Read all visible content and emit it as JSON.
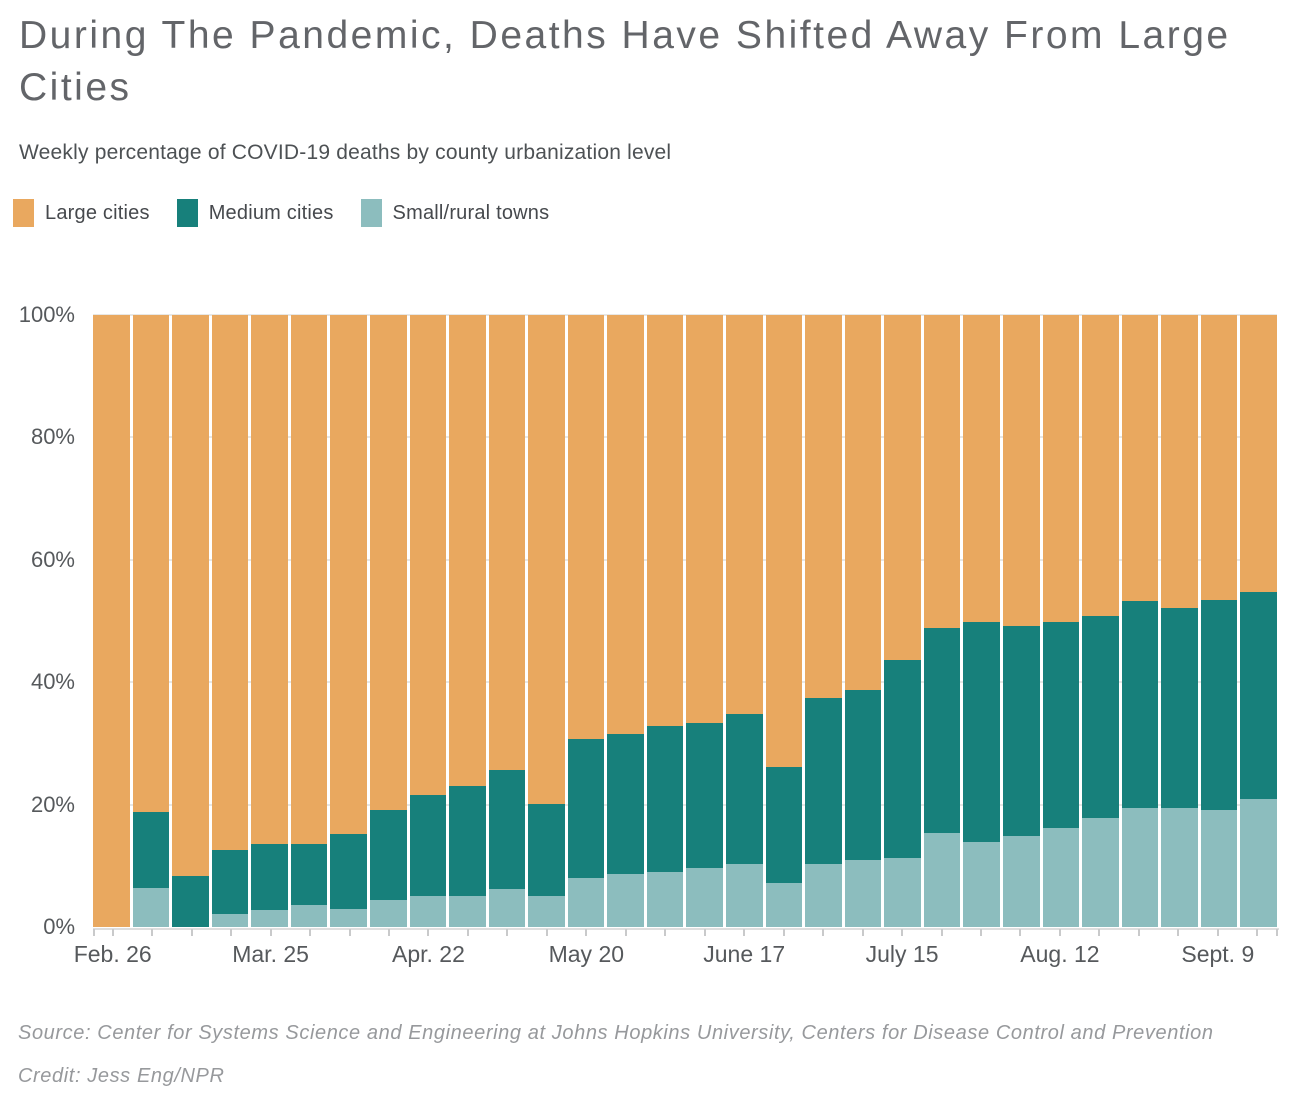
{
  "header": {
    "title": "During The Pandemic, Deaths Have Shifted Away From Large Cities",
    "subtitle": "Weekly percentage of COVID-19 deaths by county urbanization level"
  },
  "legend": [
    {
      "label": "Large cities",
      "color": "#E9A85F"
    },
    {
      "label": "Medium cities",
      "color": "#17807B"
    },
    {
      "label": "Small/rural towns",
      "color": "#8CBDBE"
    }
  ],
  "chart_data": {
    "type": "bar",
    "stacked": true,
    "unit": "percent",
    "n_bars": 30,
    "title": "During The Pandemic, Deaths Have Shifted Away From Large Cities",
    "subtitle": "Weekly percentage of COVID-19 deaths by county urbanization level",
    "ylim": [
      0,
      100
    ],
    "grid": true,
    "legend_position": "top",
    "y_ticks": [
      {
        "value": 0,
        "label": "0%"
      },
      {
        "value": 20,
        "label": "20%"
      },
      {
        "value": 40,
        "label": "40%"
      },
      {
        "value": 60,
        "label": "60%"
      },
      {
        "value": 80,
        "label": "80%"
      },
      {
        "value": 100,
        "label": "100%"
      }
    ],
    "x_tick_labels": [
      {
        "label": "Feb. 26",
        "bar": 0
      },
      {
        "label": "Mar. 25",
        "bar": 4
      },
      {
        "label": "Apr. 22",
        "bar": 8
      },
      {
        "label": "May 20",
        "bar": 12
      },
      {
        "label": "June 17",
        "bar": 16
      },
      {
        "label": "July 15",
        "bar": 20
      },
      {
        "label": "Aug. 12",
        "bar": 24
      },
      {
        "label": "Sept. 9",
        "bar": 28
      }
    ],
    "series": [
      {
        "name": "Large cities",
        "color": "#E9A85F",
        "values": [
          100,
          81.2,
          91.6,
          87.4,
          86.4,
          86.4,
          84.8,
          80.9,
          78.5,
          76.9,
          74.3,
          79.9,
          69.2,
          68.5,
          67.2,
          66.7,
          65.2,
          73.8,
          62.5,
          61.3,
          56.4,
          51.2,
          50.1,
          50.8,
          50.1,
          49.2,
          46.8,
          47.9,
          46.5,
          45.2
        ]
      },
      {
        "name": "Medium cities",
        "color": "#17807B",
        "values": [
          0,
          12.5,
          8.4,
          10.4,
          10.8,
          10.0,
          12.2,
          14.7,
          16.4,
          18.1,
          19.5,
          15.1,
          22.8,
          22.8,
          23.8,
          23.7,
          24.5,
          19.0,
          27.2,
          27.8,
          32.4,
          33.5,
          36.0,
          34.3,
          33.7,
          33.0,
          33.8,
          32.7,
          34.3,
          33.9
        ]
      },
      {
        "name": "Small/rural towns",
        "color": "#8CBDBE",
        "values": [
          0,
          6.3,
          0,
          2.2,
          2.8,
          3.6,
          3.0,
          4.4,
          5.1,
          5.0,
          6.2,
          5.0,
          8.0,
          8.7,
          9.0,
          9.6,
          10.3,
          7.2,
          10.3,
          10.9,
          11.2,
          15.3,
          13.9,
          14.9,
          16.2,
          17.8,
          19.4,
          19.4,
          19.2,
          20.9
        ]
      }
    ]
  },
  "footer": {
    "source": "Source: Center for Systems Science and Engineering at Johns Hopkins University, Centers for Disease Control and Prevention",
    "credit": "Credit: Jess Eng/NPR"
  }
}
